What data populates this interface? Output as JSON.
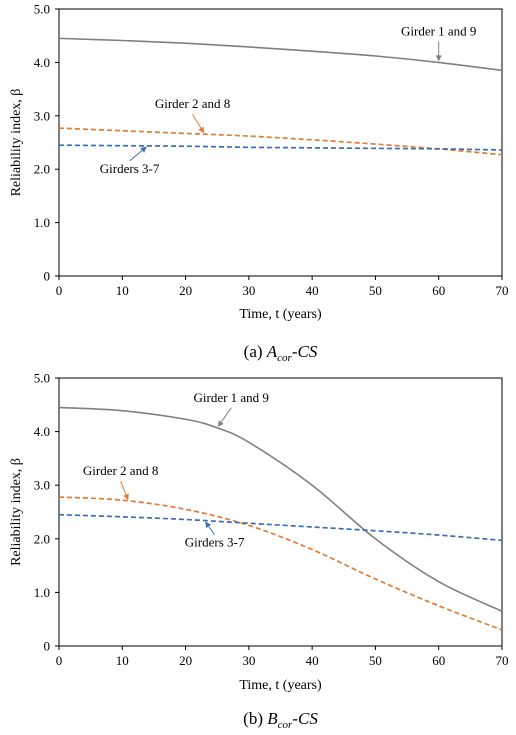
{
  "chart_data": [
    {
      "type": "line",
      "caption": {
        "prefix": "(a) ",
        "main": "A",
        "sub": "cor",
        "suffix": "-CS"
      },
      "xlabel": "Time, t (years)",
      "ylabel": "Reliability index, β",
      "xlim": [
        0,
        70
      ],
      "ylim": [
        0,
        5
      ],
      "xticks": [
        "0",
        "10",
        "20",
        "30",
        "40",
        "50",
        "60",
        "70"
      ],
      "yticks": [
        "0",
        "1.0",
        "2.0",
        "3.0",
        "4.0",
        "5.0"
      ],
      "grid": false,
      "series": [
        {
          "name": "Girder 1 and 9",
          "style": "solid",
          "color": "#808080",
          "x": [
            0,
            10,
            20,
            30,
            40,
            50,
            60,
            70
          ],
          "y": [
            4.45,
            4.41,
            4.36,
            4.29,
            4.21,
            4.12,
            4.0,
            3.85
          ]
        },
        {
          "name": "Girder 2 and 8",
          "style": "dashed",
          "color": "#E07B39",
          "x": [
            0,
            10,
            20,
            30,
            40,
            50,
            60,
            70
          ],
          "y": [
            2.77,
            2.72,
            2.67,
            2.62,
            2.55,
            2.47,
            2.38,
            2.27
          ]
        },
        {
          "name": "Girders 3-7",
          "style": "dashed",
          "color": "#3D6DB5",
          "x": [
            0,
            10,
            20,
            30,
            40,
            50,
            60,
            70
          ],
          "y": [
            2.45,
            2.44,
            2.43,
            2.41,
            2.4,
            2.39,
            2.38,
            2.36
          ]
        }
      ],
      "annotations": [
        {
          "text": "Girder 1 and 9",
          "series": 0,
          "x": 60
        },
        {
          "text": "Girder 2 and 8",
          "series": 1,
          "x": 23
        },
        {
          "text": "Girders 3-7",
          "series": 2,
          "x": 14
        }
      ]
    },
    {
      "type": "line",
      "caption": {
        "prefix": "(b) ",
        "main": "B",
        "sub": "cor",
        "suffix": "-CS"
      },
      "xlabel": "Time, t (years)",
      "ylabel": "Reliability index, β",
      "xlim": [
        0,
        70
      ],
      "ylim": [
        0,
        5
      ],
      "xticks": [
        "0",
        "10",
        "20",
        "30",
        "40",
        "50",
        "60",
        "70"
      ],
      "yticks": [
        "0",
        "1.0",
        "2.0",
        "3.0",
        "4.0",
        "5.0"
      ],
      "grid": false,
      "series": [
        {
          "name": "Girder 1 and 9",
          "style": "solid",
          "color": "#808080",
          "x": [
            0,
            10,
            20,
            25,
            30,
            40,
            50,
            60,
            70
          ],
          "y": [
            4.45,
            4.39,
            4.23,
            4.07,
            3.8,
            3.0,
            2.0,
            1.2,
            0.65
          ]
        },
        {
          "name": "Girder 2 and 8",
          "style": "dashed",
          "color": "#E07B39",
          "x": [
            0,
            10,
            20,
            30,
            40,
            50,
            60,
            70
          ],
          "y": [
            2.78,
            2.72,
            2.55,
            2.25,
            1.8,
            1.25,
            0.75,
            0.3
          ]
        },
        {
          "name": "Girders 3-7",
          "style": "dashed",
          "color": "#3D6DB5",
          "x": [
            0,
            10,
            20,
            30,
            40,
            50,
            60,
            70
          ],
          "y": [
            2.45,
            2.41,
            2.36,
            2.29,
            2.22,
            2.15,
            2.07,
            1.97
          ]
        }
      ],
      "annotations": [
        {
          "text": "Girder 1 and 9",
          "series": 0,
          "x": 25
        },
        {
          "text": "Girder 2 and 8",
          "series": 1,
          "x": 11
        },
        {
          "text": "Girders 3-7",
          "series": 2,
          "x": 23
        }
      ]
    }
  ]
}
